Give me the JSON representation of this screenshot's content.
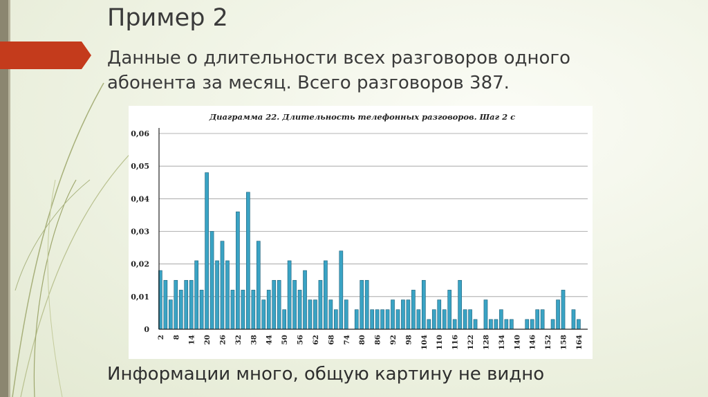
{
  "slide": {
    "title": "Пример 2",
    "subtitle": "Данные о длительности всех разговоров одного абонента за месяц. Всего разговоров 387.",
    "footer": "Информации много, общую картину не видно"
  },
  "colors": {
    "accent_tab": "#c43b1c",
    "bar_fill": "#3aa3c4",
    "bar_stroke": "#1c5f78"
  },
  "chart_data": {
    "type": "bar",
    "title": "Диаграмма 22. Длительность телефонных разговоров. Шаг 2 с",
    "xlabel": "",
    "ylabel": "",
    "ylim": [
      0,
      0.06
    ],
    "yticks": [
      "0",
      "0,01",
      "0,02",
      "0,03",
      "0,04",
      "0,05",
      "0,06"
    ],
    "xticks": [
      "2",
      "8",
      "14",
      "20",
      "26",
      "32",
      "38",
      "44",
      "50",
      "56",
      "62",
      "68",
      "74",
      "80",
      "86",
      "92",
      "98",
      "104",
      "110",
      "116",
      "122",
      "128",
      "134",
      "140",
      "146",
      "152",
      "158",
      "164"
    ],
    "grid": true,
    "legend": "none",
    "x": [
      2,
      4,
      6,
      8,
      10,
      12,
      14,
      16,
      18,
      20,
      22,
      24,
      26,
      28,
      30,
      32,
      34,
      36,
      38,
      40,
      42,
      44,
      46,
      48,
      50,
      52,
      54,
      56,
      58,
      60,
      62,
      64,
      66,
      68,
      70,
      72,
      74,
      76,
      78,
      80,
      82,
      84,
      86,
      88,
      90,
      92,
      94,
      96,
      98,
      100,
      102,
      104,
      106,
      108,
      110,
      112,
      114,
      116,
      118,
      120,
      122,
      124,
      126,
      128,
      130,
      132,
      134,
      136,
      138,
      140,
      142,
      144,
      146,
      148,
      150,
      152,
      154,
      156,
      158,
      160,
      162,
      164,
      166
    ],
    "values": [
      0.018,
      0.015,
      0.009,
      0.015,
      0.012,
      0.015,
      0.015,
      0.021,
      0.012,
      0.048,
      0.03,
      0.021,
      0.027,
      0.021,
      0.012,
      0.036,
      0.012,
      0.042,
      0.012,
      0.027,
      0.009,
      0.012,
      0.015,
      0.015,
      0.006,
      0.021,
      0.015,
      0.012,
      0.018,
      0.009,
      0.009,
      0.015,
      0.021,
      0.009,
      0.006,
      0.024,
      0.009,
      0,
      0.006,
      0.015,
      0.015,
      0.006,
      0.006,
      0.006,
      0.006,
      0.009,
      0.006,
      0.009,
      0.009,
      0.012,
      0.006,
      0.015,
      0.003,
      0.006,
      0.009,
      0.006,
      0.012,
      0.003,
      0.015,
      0.006,
      0.006,
      0.003,
      0,
      0.009,
      0.003,
      0.003,
      0.006,
      0.003,
      0.003,
      0,
      0,
      0.003,
      0.003,
      0.006,
      0.006,
      0,
      0.003,
      0.009,
      0.012,
      0,
      0.006,
      0.003,
      0
    ]
  }
}
